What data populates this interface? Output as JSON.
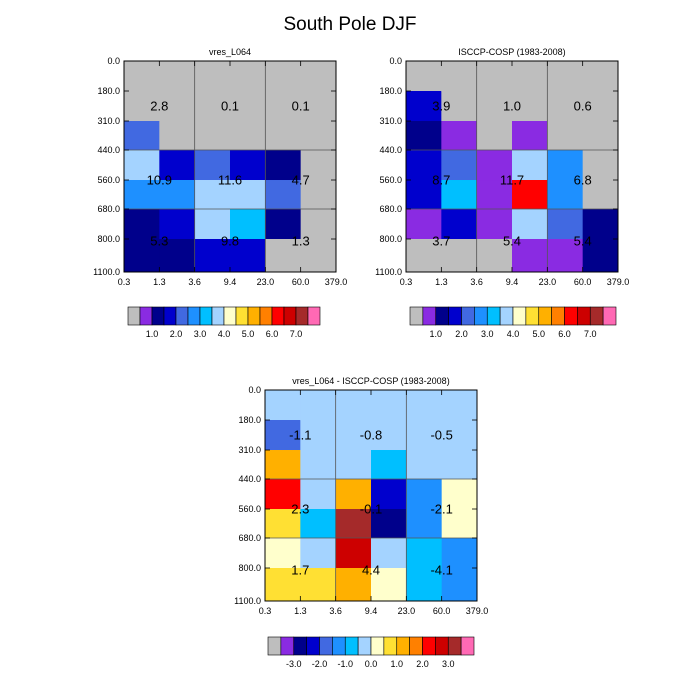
{
  "title": "South Pole DJF",
  "colors": {
    "scale": [
      "#bebebe",
      "#8a2be2",
      "#00008b",
      "#0000cd",
      "#4169e1",
      "#1e90ff",
      "#00bfff",
      "#a4d3ff",
      "#ffffcc",
      "#ffe033",
      "#ffb000",
      "#ff8000",
      "#ff0000",
      "#cd0000",
      "#a52a2a",
      "#ff69b4"
    ]
  },
  "chart_data": [
    {
      "type": "heatmap",
      "title": "vres_L064",
      "x_ticks": [
        "0.3",
        "1.3",
        "3.6",
        "9.4",
        "23.0",
        "60.0",
        "379.0"
      ],
      "y_ticks": [
        "0.0",
        "180.0",
        "310.0",
        "440.0",
        "560.0",
        "680.0",
        "800.0",
        "1100.0"
      ],
      "cells": [
        [
          0,
          0,
          0,
          0,
          0,
          0
        ],
        [
          4,
          0,
          0,
          0,
          0,
          0
        ],
        [
          7,
          3,
          4,
          3,
          2,
          0
        ],
        [
          5,
          5,
          7,
          7,
          4,
          0
        ],
        [
          2,
          3,
          7,
          6,
          2,
          0
        ],
        [
          2,
          2,
          3,
          3,
          0,
          0
        ]
      ],
      "block_values": [
        [
          "2.8",
          "0.1",
          "0.1"
        ],
        [
          "10.9",
          "11.6",
          "4.7"
        ],
        [
          "5.3",
          "9.8",
          "1.3"
        ]
      ],
      "colorbar_labels": [
        "1.0",
        "2.0",
        "3.0",
        "4.0",
        "5.0",
        "6.0",
        "7.0"
      ]
    },
    {
      "type": "heatmap",
      "title": "ISCCP-COSP (1983-2008)",
      "x_ticks": [
        "0.3",
        "1.3",
        "3.6",
        "9.4",
        "23.0",
        "60.0",
        "379.0"
      ],
      "y_ticks": [
        "0.0",
        "180.0",
        "310.0",
        "440.0",
        "560.0",
        "680.0",
        "800.0",
        "1100.0"
      ],
      "cells": [
        [
          3,
          0,
          0,
          0,
          0,
          0
        ],
        [
          2,
          1,
          0,
          1,
          0,
          0
        ],
        [
          3,
          4,
          1,
          7,
          5,
          0
        ],
        [
          3,
          6,
          1,
          12,
          5,
          0
        ],
        [
          1,
          3,
          1,
          7,
          4,
          2
        ],
        [
          0,
          0,
          0,
          1,
          1,
          2
        ]
      ],
      "block_values": [
        [
          "3.9",
          "1.0",
          "0.6"
        ],
        [
          "8.7",
          "11.7",
          "6.8"
        ],
        [
          "3.7",
          "5.4",
          "5.4"
        ]
      ],
      "colorbar_labels": [
        "1.0",
        "2.0",
        "3.0",
        "4.0",
        "5.0",
        "6.0",
        "7.0"
      ]
    },
    {
      "type": "heatmap",
      "title": "vres_L064 - ISCCP-COSP (1983-2008)",
      "x_ticks": [
        "0.3",
        "1.3",
        "3.6",
        "9.4",
        "23.0",
        "60.0",
        "379.0"
      ],
      "y_ticks": [
        "0.0",
        "180.0",
        "310.0",
        "440.0",
        "560.0",
        "680.0",
        "800.0",
        "1100.0"
      ],
      "cells": [
        [
          4,
          7,
          7,
          7,
          7,
          7
        ],
        [
          10,
          7,
          7,
          6,
          7,
          7
        ],
        [
          12,
          7,
          10,
          3,
          5,
          8
        ],
        [
          9,
          6,
          14,
          2,
          5,
          8
        ],
        [
          8,
          7,
          13,
          7,
          6,
          5
        ],
        [
          9,
          9,
          10,
          8,
          6,
          5
        ]
      ],
      "block_values": [
        [
          "-1.1",
          "-0.8",
          "-0.5"
        ],
        [
          "2.3",
          "-0.1",
          "-2.1"
        ],
        [
          "1.7",
          "4.4",
          "-4.1"
        ]
      ],
      "colorbar_labels": [
        "-3.0",
        "-2.0",
        "-1.0",
        "0.0",
        "1.0",
        "2.0",
        "3.0"
      ]
    }
  ]
}
